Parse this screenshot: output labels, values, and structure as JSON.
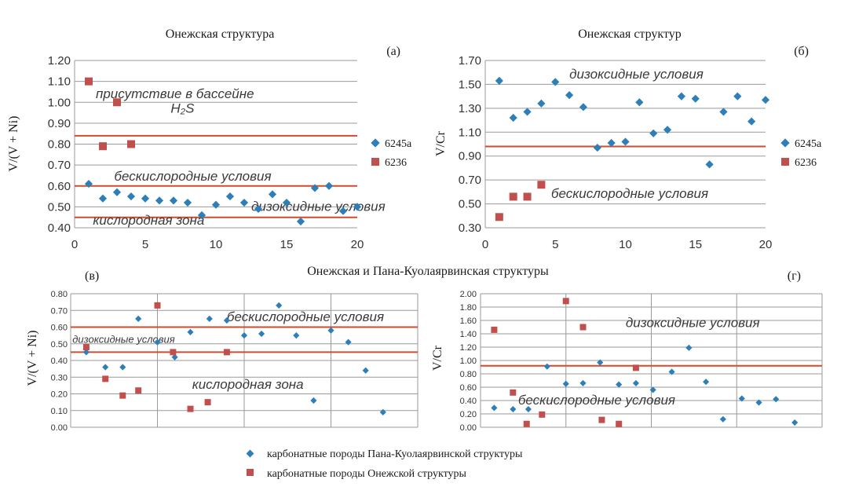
{
  "figure_title": "Онежская и Пана-Куолаярвинская структуры",
  "bottom_legend": [
    {
      "label": "карбонатные породы Пана-Куолаярвинской структуры",
      "color": "#2e7fb8",
      "marker": "diamond"
    },
    {
      "label": "карбонатные породы Онежской структуры",
      "color": "#c0504d",
      "marker": "square"
    }
  ],
  "chart_data": [
    {
      "id": "a",
      "type": "scatter",
      "panel_label": "(а)",
      "title": "Онежская структура",
      "ylabel": "V/(V + Ni)",
      "xlabel": "",
      "xlim": [
        0,
        20
      ],
      "ylim": [
        0.4,
        1.2
      ],
      "xticks": [
        0,
        5,
        10,
        15,
        20
      ],
      "yticks": [
        0.4,
        0.5,
        0.6,
        0.7,
        0.8,
        0.9,
        1.0,
        1.1,
        1.2
      ],
      "ytick_labels": [
        "0.40",
        "0.50",
        "0.60",
        "0.70",
        "0.80",
        "0.90",
        "1.00",
        "1.10",
        "1.20"
      ],
      "grid": true,
      "legend_position": "right",
      "thresholds": [
        0.45,
        0.6,
        0.84
      ],
      "annotations": [
        {
          "text": "присутствие в бассейне",
          "x": 1.5,
          "y": 1.02
        },
        {
          "text": "H₂S",
          "x": 6.8,
          "y": 0.95
        },
        {
          "text": "бескислородные условия",
          "x": 2.8,
          "y": 0.625
        },
        {
          "text": "дизоксидные условия",
          "x": 12.5,
          "y": 0.48
        },
        {
          "text": "кислородная зона",
          "x": 1.3,
          "y": 0.415
        }
      ],
      "series": [
        {
          "name": "6245а",
          "marker": "diamond",
          "color": "#2e7fb8",
          "x": [
            1,
            2,
            3,
            4,
            5,
            6,
            7,
            8,
            9,
            10,
            11,
            12,
            13,
            14,
            15,
            16,
            17,
            18,
            19,
            20
          ],
          "y": [
            0.61,
            0.54,
            0.57,
            0.55,
            0.54,
            0.53,
            0.53,
            0.52,
            0.46,
            0.51,
            0.55,
            0.52,
            0.49,
            0.56,
            0.52,
            0.43,
            0.59,
            0.6,
            0.48,
            0.5
          ]
        },
        {
          "name": "6236",
          "marker": "square",
          "color": "#c0504d",
          "x": [
            1,
            2,
            3,
            4
          ],
          "y": [
            1.1,
            0.79,
            1.0,
            0.8
          ]
        }
      ]
    },
    {
      "id": "b",
      "type": "scatter",
      "panel_label": "(б)",
      "title": "Онежская структур",
      "ylabel": "V/Cr",
      "xlabel": "",
      "xlim": [
        0,
        20
      ],
      "ylim": [
        0.3,
        1.7
      ],
      "xticks": [
        0,
        5,
        10,
        15,
        20
      ],
      "yticks": [
        0.3,
        0.5,
        0.7,
        0.9,
        1.1,
        1.3,
        1.5,
        1.7
      ],
      "ytick_labels": [
        "0.30",
        "0.50",
        "0.70",
        "0.90",
        "1.10",
        "1.30",
        "1.50",
        "1.70"
      ],
      "grid": true,
      "legend_position": "right",
      "thresholds": [
        0.98
      ],
      "annotations": [
        {
          "text": "дизоксидные условия",
          "x": 6.0,
          "y": 1.55
        },
        {
          "text": "бескислородные условия",
          "x": 4.7,
          "y": 0.55
        }
      ],
      "series": [
        {
          "name": "6245а",
          "marker": "diamond",
          "color": "#2e7fb8",
          "x": [
            1,
            2,
            3,
            4,
            5,
            6,
            7,
            8,
            9,
            10,
            11,
            12,
            13,
            14,
            15,
            16,
            17,
            18,
            19,
            20
          ],
          "y": [
            1.53,
            1.22,
            1.27,
            1.34,
            1.52,
            1.41,
            1.31,
            0.97,
            1.01,
            1.02,
            1.35,
            1.09,
            1.12,
            1.4,
            1.38,
            0.83,
            1.27,
            1.4,
            1.19,
            1.37
          ]
        },
        {
          "name": "6236",
          "marker": "square",
          "color": "#c0504d",
          "x": [
            1,
            2,
            3,
            4
          ],
          "y": [
            0.39,
            0.56,
            0.56,
            0.66
          ]
        }
      ]
    },
    {
      "id": "c",
      "type": "scatter",
      "panel_label": "(в)",
      "title": "",
      "ylabel": "V/(V + Ni)",
      "xlabel": "",
      "xlim": [
        0,
        20
      ],
      "ylim": [
        0,
        0.8
      ],
      "xticks": [],
      "vgrid": [
        0,
        5,
        10,
        15,
        20
      ],
      "yticks": [
        0,
        0.1,
        0.2,
        0.3,
        0.4,
        0.5,
        0.6,
        0.7,
        0.8
      ],
      "ytick_labels": [
        "0.00",
        "0.10",
        "0.20",
        "0.30",
        "0.40",
        "0.50",
        "0.60",
        "0.70",
        "0.80"
      ],
      "grid": true,
      "thresholds": [
        0.45,
        0.6
      ],
      "annotations": [
        {
          "text": "бескислородные условия",
          "x": 9.0,
          "y": 0.635,
          "size": 17
        },
        {
          "text": "дизоксидные условия",
          "x": 0.1,
          "y": 0.505,
          "size": 13
        },
        {
          "text": "кислородная зона",
          "x": 7.0,
          "y": 0.23,
          "size": 17
        }
      ],
      "series": [
        {
          "name": "карбонатные породы Пана-Куолаярвинской структуры",
          "marker": "diamond",
          "color": "#2e7fb8",
          "x": [
            0.9,
            2.0,
            3.0,
            3.9,
            5.0,
            6.0,
            6.9,
            8.0,
            9.0,
            10.0,
            11.0,
            12.0,
            13.0,
            14.0,
            15.0,
            16.0,
            17.0,
            18.0,
            19.0,
            20.0
          ],
          "y": [
            0.45,
            0.36,
            0.36,
            0.65,
            0.51,
            0.42,
            0.57,
            0.65,
            0.64,
            0.55,
            0.56,
            0.73,
            0.55,
            0.16,
            0.58,
            0.51,
            0.34,
            0.09,
            null,
            null
          ]
        },
        {
          "name": "карбонатные породы Онежской структуры",
          "marker": "square",
          "color": "#c0504d",
          "x": [
            0.9,
            2.0,
            3.0,
            3.9,
            5.0,
            5.9,
            6.9,
            7.9,
            9.0
          ],
          "y": [
            0.48,
            0.29,
            0.19,
            0.22,
            0.73,
            0.45,
            0.11,
            0.15,
            0.45
          ]
        }
      ]
    },
    {
      "id": "d",
      "type": "scatter",
      "panel_label": "(г)",
      "title": "",
      "ylabel": "V/Cr",
      "xlabel": "",
      "xlim": [
        0,
        20
      ],
      "ylim": [
        0,
        2.0
      ],
      "xticks": [],
      "vgrid": [
        0,
        5,
        10,
        15,
        20
      ],
      "yticks": [
        0,
        0.2,
        0.4,
        0.6,
        0.8,
        1.0,
        1.2,
        1.4,
        1.6,
        1.8,
        2.0
      ],
      "ytick_labels": [
        "0.00",
        "0.20",
        "0.40",
        "0.60",
        "0.80",
        "1.00",
        "1.20",
        "1.40",
        "1.60",
        "1.80",
        "2.00"
      ],
      "grid": true,
      "thresholds": [
        0.92
      ],
      "annotations": [
        {
          "text": "дизоксидные условия",
          "x": 8.5,
          "y": 1.5,
          "size": 17
        },
        {
          "text": "бескислородные условия",
          "x": 2.2,
          "y": 0.34,
          "size": 17
        }
      ],
      "series": [
        {
          "name": "карбонатные породы Пана-Куолаярвинской структуры",
          "marker": "diamond",
          "color": "#2e7fb8",
          "x": [
            0.8,
            1.9,
            2.8,
            3.9,
            5.0,
            6.0,
            7.0,
            8.1,
            9.1,
            10.1,
            11.2,
            12.2,
            13.2,
            14.2,
            15.3,
            16.3,
            17.3,
            18.4,
            null,
            null
          ],
          "y": [
            0.29,
            0.27,
            0.27,
            0.91,
            0.65,
            0.66,
            0.97,
            0.64,
            0.66,
            0.56,
            0.83,
            1.19,
            0.68,
            0.12,
            0.43,
            0.37,
            0.42,
            0.07,
            null,
            null
          ]
        },
        {
          "name": "карбонатные породы Онежской структуры",
          "marker": "square",
          "color": "#c0504d",
          "x": [
            0.8,
            1.9,
            2.7,
            3.6,
            5.0,
            6.0,
            7.1,
            8.1,
            9.1
          ],
          "y": [
            1.46,
            0.52,
            0.05,
            0.19,
            1.89,
            1.5,
            0.11,
            0.05,
            0.89
          ]
        }
      ]
    }
  ]
}
